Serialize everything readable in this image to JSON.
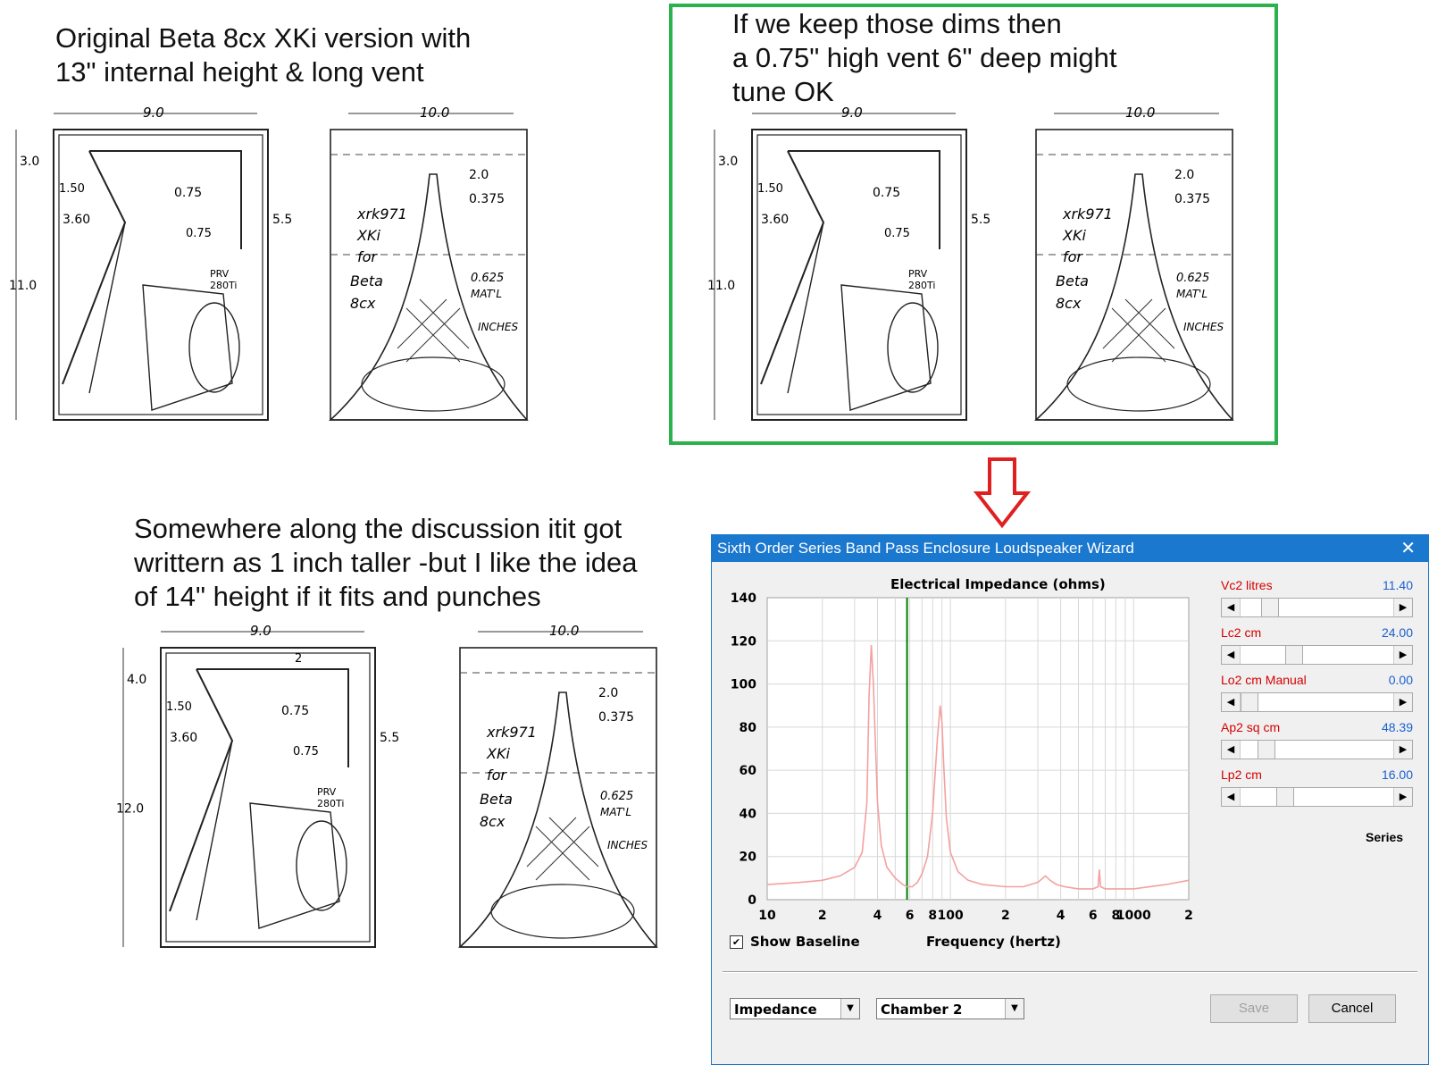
{
  "captions": {
    "top_left": [
      "Original Beta 8cx XKi version with",
      "13\" internal height & long vent"
    ],
    "top_right": [
      "If we keep those dims then",
      "a 0.75\" high vent 6\" deep might",
      "tune OK"
    ],
    "bottom_left": [
      "Somewhere along the discussion itit got",
      "writtern as 1 inch taller -but I like the idea",
      "of 14\" height if it fits and punches"
    ]
  },
  "sketch_labels": {
    "width_front": "9.0",
    "width_side": "10.0",
    "dim_3": "3.0",
    "dim_4": "4.0",
    "dim_150": "1.50",
    "dim_360": "3.60",
    "dim_075": "0.75",
    "dim_075b": "0.75",
    "dim_55": "5.5",
    "dim_11": "11.0",
    "dim_12": "12.0",
    "dim_2": "2.0",
    "dim_0375": "0.375",
    "driver_note_1": "xrk971",
    "driver_note_2": "XKi",
    "driver_note_3": "for",
    "driver_note_4": "Beta",
    "driver_note_5": "8cx",
    "mat_note_1": "0.625",
    "mat_note_2": "MAT'L",
    "inches": "INCHES",
    "prv_1": "PRV",
    "prv_2": "280Ti",
    "vent_mark": "2"
  },
  "dialog": {
    "title": "Sixth Order Series Band Pass Enclosure Loudspeaker Wizard",
    "close_icon": "close-icon",
    "chart_title": "Electrical Impedance (ohms)",
    "show_baseline_label": "Show Baseline",
    "show_baseline_checked": true,
    "x_axis_label": "Frequency (hertz)",
    "series_label": "Series",
    "params": [
      {
        "label": "Vc2  litres",
        "value": "11.40",
        "slider": 0.15
      },
      {
        "label": "Lc2  cm",
        "value": "24.00",
        "slider": 0.32
      },
      {
        "label": "Lo2  cm  Manual",
        "value": "0.00",
        "slider": 0.0
      },
      {
        "label": "Ap2  sq cm",
        "value": "48.39",
        "slider": 0.12
      },
      {
        "label": "Lp2  cm",
        "value": "16.00",
        "slider": 0.26
      }
    ],
    "combo_view": "Impedance",
    "combo_chamber": "Chamber 2",
    "save_label": "Save",
    "cancel_label": "Cancel"
  },
  "chart_data": {
    "type": "line",
    "title": "Electrical Impedance (ohms)",
    "xlabel": "Frequency (hertz)",
    "ylabel": "",
    "x_scale": "log",
    "xlim": [
      10,
      2000
    ],
    "ylim": [
      0,
      140
    ],
    "y_ticks": [
      0,
      20,
      40,
      60,
      80,
      100,
      120,
      140
    ],
    "x_tick_labels": [
      "10",
      "2",
      "4",
      "6",
      "8",
      "100",
      "2",
      "4",
      "6",
      "8",
      "1000",
      "2"
    ],
    "x_tick_values": [
      10,
      20,
      40,
      60,
      80,
      100,
      200,
      400,
      600,
      800,
      1000,
      2000
    ],
    "grid": true,
    "marker_x": 58,
    "marker_color": "#008000",
    "line_color": "#f4a0a0",
    "series": [
      {
        "x": [
          10,
          15,
          20,
          25,
          30,
          33,
          35,
          36,
          37,
          38,
          40,
          42,
          45,
          50,
          55,
          58,
          62,
          66,
          70,
          75,
          80,
          85,
          88,
          90,
          92,
          95,
          100,
          110,
          125,
          150,
          200,
          250,
          300,
          330,
          350,
          380,
          420,
          500,
          600,
          640,
          650,
          660,
          700,
          800,
          1000,
          1500,
          2000
        ],
        "y": [
          7,
          8,
          9,
          11,
          15,
          22,
          45,
          95,
          118,
          100,
          45,
          25,
          15,
          10,
          7,
          6,
          6,
          8,
          12,
          20,
          40,
          75,
          90,
          82,
          62,
          38,
          22,
          13,
          9,
          7,
          6,
          6,
          8,
          11,
          9,
          7,
          6,
          5,
          5,
          6,
          14,
          6,
          5,
          5,
          5,
          7,
          9
        ]
      }
    ]
  }
}
